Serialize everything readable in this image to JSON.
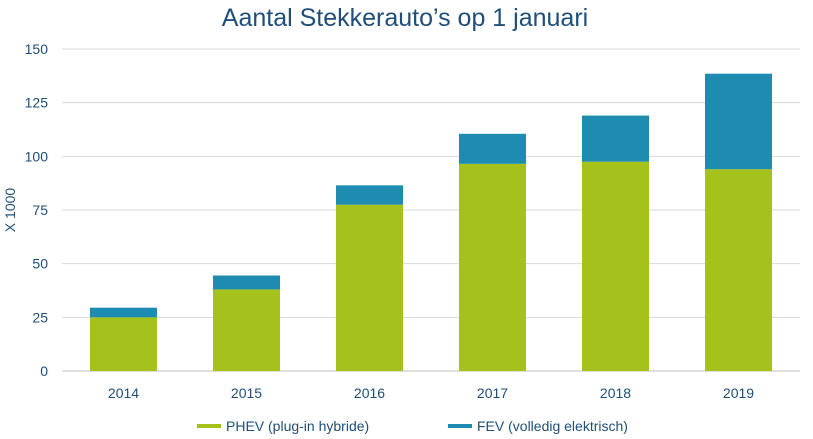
{
  "chart_data": {
    "type": "bar",
    "stacked": true,
    "title": "Aantal Stekkerauto’s op 1 januari",
    "xlabel": "",
    "ylabel": "X 1000",
    "categories": [
      "2014",
      "2015",
      "2016",
      "2017",
      "2018",
      "2019"
    ],
    "ylim": [
      0,
      150
    ],
    "yticks": [
      0,
      25,
      50,
      75,
      100,
      125,
      150
    ],
    "grid": true,
    "legend_position": "bottom",
    "series": [
      {
        "name": "PHEV (plug-in hybride)",
        "color": "#A5C21C",
        "values": [
          25.0,
          38.0,
          77.5,
          96.5,
          97.5,
          94.0
        ]
      },
      {
        "name": "FEV (volledig elektrisch)",
        "color": "#1E8BB0",
        "values": [
          4.5,
          6.5,
          9.0,
          14.0,
          21.5,
          44.5
        ]
      }
    ]
  }
}
